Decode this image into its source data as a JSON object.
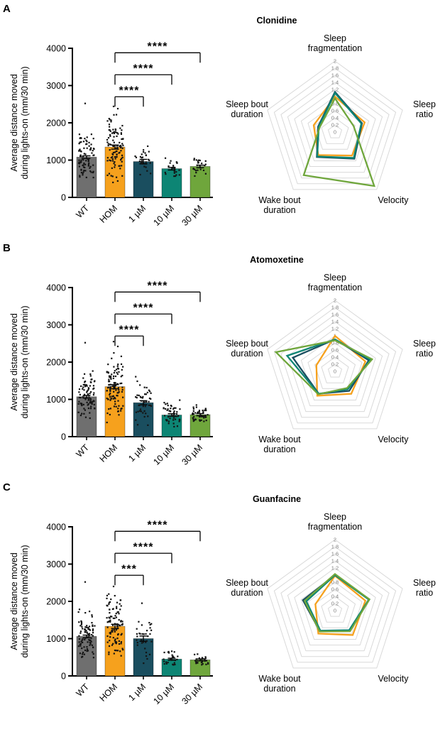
{
  "figure": {
    "panels": [
      {
        "letter": "A",
        "title": "Clonidine"
      },
      {
        "letter": "B",
        "title": "Atomoxetine"
      },
      {
        "letter": "C",
        "title": "Guanfacine"
      }
    ]
  },
  "chart_data": [
    {
      "panel": "A",
      "type": "bar",
      "title": "Clonidine",
      "ylabel": "Average distance moved during lights-on (mm/30 min)",
      "ylabel_lines": [
        "Average distance moved",
        "during lights-on (mm/30 min)"
      ],
      "ylim": [
        0,
        4000
      ],
      "yticks": [
        0,
        1000,
        2000,
        3000,
        4000
      ],
      "categories": [
        "WT",
        "HOM",
        "1 µM",
        "10 µM",
        "30 µM"
      ],
      "values": [
        1080,
        1350,
        960,
        770,
        830
      ],
      "errors": [
        35,
        55,
        60,
        35,
        35
      ],
      "colors": [
        "#6F6F6F",
        "#F6A11D",
        "#1A4E5F",
        "#0D8574",
        "#6FA63C"
      ],
      "scatter": [
        {
          "n": 88,
          "sd": 300,
          "min": 460,
          "max": 1820,
          "outliers": [
            2520
          ]
        },
        {
          "n": 105,
          "sd": 430,
          "min": 300,
          "max": 2240,
          "outliers": [
            2440,
            2380
          ]
        },
        {
          "n": 28,
          "sd": 210,
          "min": 560,
          "max": 1420,
          "outliers": []
        },
        {
          "n": 24,
          "sd": 140,
          "min": 500,
          "max": 1060,
          "outliers": []
        },
        {
          "n": 24,
          "sd": 150,
          "min": 560,
          "max": 1240,
          "outliers": []
        }
      ],
      "significance": [
        {
          "from": 1,
          "to": 2,
          "label": "****",
          "y": 2700
        },
        {
          "from": 1,
          "to": 3,
          "label": "****",
          "y": 3290
        },
        {
          "from": 1,
          "to": 4,
          "label": "****",
          "y": 3880
        }
      ]
    },
    {
      "panel": "A",
      "type": "radar",
      "title": "Clonidine",
      "axes": [
        "Sleep fragmentation",
        "Sleep ratio",
        "Velocity",
        "Wake bout duration",
        "Sleep bout duration"
      ],
      "rmax": 2,
      "rtick_step": 0.2,
      "grid": true,
      "legend_position": "none",
      "series": [
        {
          "name": "HOM",
          "color": "#F6A11D",
          "values": [
            1.0,
            0.88,
            0.82,
            0.8,
            0.63
          ]
        },
        {
          "name": "1 µM",
          "color": "#1A4E5F",
          "values": [
            1.13,
            0.8,
            0.93,
            0.87,
            0.5
          ]
        },
        {
          "name": "10 µM",
          "color": "#0D8574",
          "values": [
            1.1,
            0.78,
            0.9,
            0.85,
            0.48
          ]
        },
        {
          "name": "30 µM",
          "color": "#6FA63C",
          "values": [
            0.95,
            0.55,
            1.88,
            1.5,
            0.45
          ]
        }
      ]
    },
    {
      "panel": "B",
      "type": "bar",
      "title": "Atomoxetine",
      "ylabel": "Average distance moved during lights-on (mm/30 min)",
      "ylabel_lines": [
        "Average distance moved",
        "during lights-on (mm/30 min)"
      ],
      "ylim": [
        0,
        4000
      ],
      "yticks": [
        0,
        1000,
        2000,
        3000,
        4000
      ],
      "categories": [
        "WT",
        "HOM",
        "1 µM",
        "10 µM",
        "30 µM"
      ],
      "values": [
        1070,
        1340,
        910,
        580,
        590
      ],
      "errors": [
        35,
        55,
        55,
        35,
        30
      ],
      "colors": [
        "#6F6F6F",
        "#F6A11D",
        "#1A4E5F",
        "#0D8574",
        "#6FA63C"
      ],
      "scatter": [
        {
          "n": 88,
          "sd": 300,
          "min": 460,
          "max": 1820,
          "outliers": [
            2520
          ]
        },
        {
          "n": 110,
          "sd": 430,
          "min": 300,
          "max": 2300,
          "outliers": [
            2550,
            2420
          ]
        },
        {
          "n": 45,
          "sd": 310,
          "min": 300,
          "max": 1650,
          "outliers": []
        },
        {
          "n": 48,
          "sd": 210,
          "min": 250,
          "max": 1200,
          "outliers": []
        },
        {
          "n": 48,
          "sd": 150,
          "min": 300,
          "max": 960,
          "outliers": []
        }
      ],
      "significance": [
        {
          "from": 1,
          "to": 2,
          "label": "****",
          "y": 2700
        },
        {
          "from": 1,
          "to": 3,
          "label": "****",
          "y": 3290
        },
        {
          "from": 1,
          "to": 4,
          "label": "****",
          "y": 3880
        }
      ]
    },
    {
      "panel": "B",
      "type": "radar",
      "title": "Atomoxetine",
      "axes": [
        "Sleep fragmentation",
        "Sleep ratio",
        "Velocity",
        "Wake bout duration",
        "Sleep bout duration"
      ],
      "rmax": 2,
      "rtick_step": 0.2,
      "grid": true,
      "legend_position": "none",
      "series": [
        {
          "name": "HOM",
          "color": "#F6A11D",
          "values": [
            1.0,
            0.9,
            0.78,
            0.85,
            0.55
          ]
        },
        {
          "name": "1 µM",
          "color": "#1A4E5F",
          "values": [
            0.9,
            1.0,
            0.68,
            0.78,
            1.25
          ]
        },
        {
          "name": "10 µM",
          "color": "#0D8574",
          "values": [
            0.9,
            1.05,
            0.62,
            0.78,
            1.42
          ]
        },
        {
          "name": "30 µM",
          "color": "#6FA63C",
          "values": [
            0.87,
            1.1,
            0.58,
            0.8,
            1.75
          ]
        }
      ]
    },
    {
      "panel": "C",
      "type": "bar",
      "title": "Guanfacine",
      "ylabel": "Average distance moved during lights-on (mm/30 min)",
      "ylabel_lines": [
        "Average distance moved",
        "during lights-on (mm/30 min)"
      ],
      "ylim": [
        0,
        4000
      ],
      "yticks": [
        0,
        1000,
        2000,
        3000,
        4000
      ],
      "categories": [
        "WT",
        "HOM",
        "1 µM",
        "10 µM",
        "30 µM"
      ],
      "values": [
        1060,
        1330,
        1000,
        450,
        430
      ],
      "errors": [
        35,
        55,
        70,
        25,
        25
      ],
      "colors": [
        "#6F6F6F",
        "#F6A11D",
        "#1A4E5F",
        "#0D8574",
        "#6FA63C"
      ],
      "scatter": [
        {
          "n": 88,
          "sd": 300,
          "min": 460,
          "max": 1820,
          "outliers": [
            2520
          ]
        },
        {
          "n": 105,
          "sd": 430,
          "min": 300,
          "max": 2250,
          "outliers": [
            2400
          ]
        },
        {
          "n": 33,
          "sd": 280,
          "min": 260,
          "max": 1550,
          "outliers": [
            1950
          ]
        },
        {
          "n": 26,
          "sd": 130,
          "min": 260,
          "max": 990,
          "outliers": []
        },
        {
          "n": 26,
          "sd": 110,
          "min": 260,
          "max": 700,
          "outliers": []
        }
      ],
      "significance": [
        {
          "from": 1,
          "to": 2,
          "label": "***",
          "y": 2700
        },
        {
          "from": 1,
          "to": 3,
          "label": "****",
          "y": 3290
        },
        {
          "from": 1,
          "to": 4,
          "label": "****",
          "y": 3880
        }
      ]
    },
    {
      "panel": "C",
      "type": "radar",
      "title": "Guanfacine",
      "axes": [
        "Sleep fragmentation",
        "Sleep ratio",
        "Velocity",
        "Wake bout duration",
        "Sleep bout duration"
      ],
      "rmax": 2,
      "rtick_step": 0.2,
      "grid": true,
      "legend_position": "none",
      "series": [
        {
          "name": "HOM",
          "color": "#F6A11D",
          "values": [
            0.98,
            0.9,
            0.85,
            0.8,
            0.58
          ]
        },
        {
          "name": "1 µM",
          "color": "#1A4E5F",
          "values": [
            1.0,
            1.02,
            0.7,
            0.72,
            0.95
          ]
        },
        {
          "name": "10 µM",
          "color": "#0D8574",
          "values": [
            1.0,
            1.0,
            0.68,
            0.7,
            0.85
          ]
        },
        {
          "name": "30 µM",
          "color": "#6FA63C",
          "values": [
            1.03,
            1.02,
            0.72,
            0.73,
            0.9
          ]
        }
      ]
    }
  ]
}
